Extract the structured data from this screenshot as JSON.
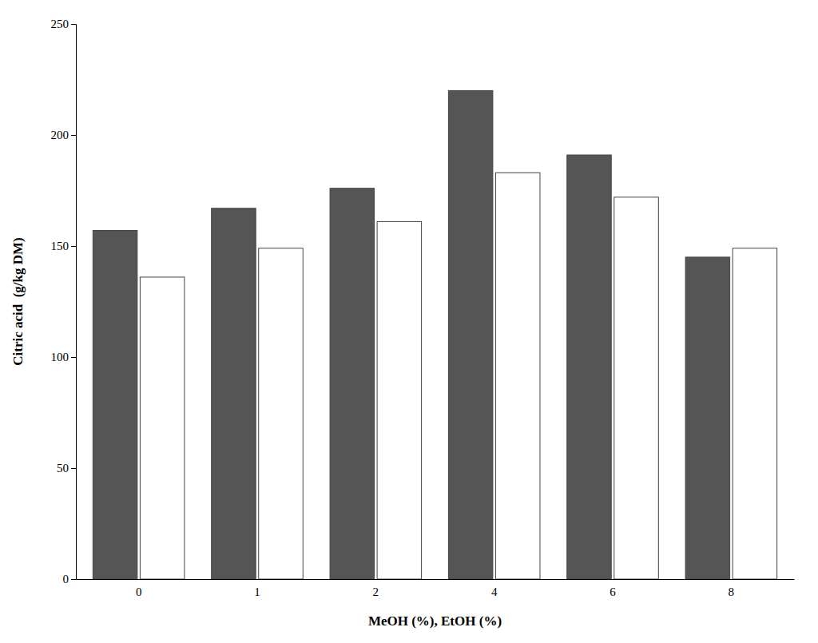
{
  "chart_data": {
    "type": "bar",
    "categories": [
      "0",
      "1",
      "2",
      "4",
      "6",
      "8"
    ],
    "series": [
      {
        "color": "#555555",
        "values": [
          157,
          167,
          176,
          220,
          191,
          145
        ]
      },
      {
        "color": "#ffffff",
        "values": [
          136,
          149,
          161,
          183,
          172,
          149
        ]
      }
    ],
    "xlabel": "MeOH (%), EtOH (%)",
    "ylabel": "Citric acid  (g/kg DM)",
    "ylim": [
      0,
      250
    ],
    "yticks": [
      0,
      50,
      100,
      150,
      200,
      250
    ],
    "grid": false
  }
}
